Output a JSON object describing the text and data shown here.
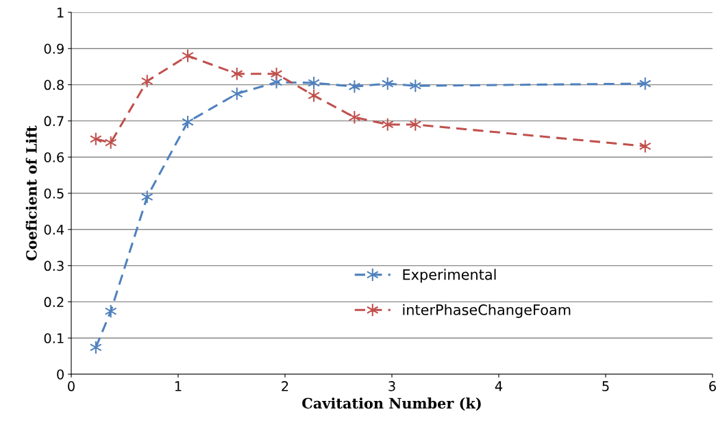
{
  "chart_data": {
    "type": "line",
    "xlabel": "Cavitation Number (k)",
    "ylabel": "Coeficient of Lift",
    "xlim": [
      0,
      6
    ],
    "xticks": [
      0,
      1,
      2,
      3,
      4,
      5,
      6
    ],
    "ylim": [
      0,
      1
    ],
    "yticks": [
      0,
      0.1,
      0.2,
      0.3,
      0.4,
      0.5,
      0.6,
      0.7,
      0.8,
      0.9,
      1
    ],
    "grid": "y",
    "legend": "bottom right",
    "marker": "cross",
    "line_style": "dashed",
    "x": [
      0.23,
      0.37,
      0.71,
      1.09,
      1.55,
      1.92,
      2.27,
      2.65,
      2.96,
      3.22,
      5.37
    ],
    "series": [
      {
        "name": "Experimental",
        "color": "#4f81bd",
        "values": [
          0.074,
          0.174,
          0.49,
          0.697,
          0.775,
          0.807,
          0.805,
          0.795,
          0.803,
          0.797,
          0.803
        ]
      },
      {
        "name": "interPhaseChangeFoam",
        "color": "#c0504d",
        "values": [
          0.65,
          0.64,
          0.81,
          0.88,
          0.83,
          0.83,
          0.77,
          0.71,
          0.69,
          0.69,
          0.63
        ]
      }
    ]
  }
}
